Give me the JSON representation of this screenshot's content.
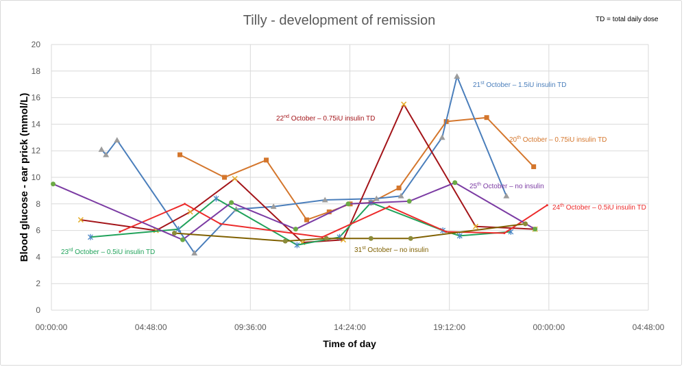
{
  "chart_data": {
    "type": "line",
    "title": "Tilly - development of remission",
    "note": "TD = total daily dose",
    "xlabel": "Time of day",
    "ylabel": "Blood glucose - ear prick (mmol/L)",
    "x_ticks": [
      "00:00:00",
      "04:48:00",
      "09:36:00",
      "14:24:00",
      "19:12:00",
      "00:00:00",
      "04:48:00"
    ],
    "y_ticks": [
      0,
      2,
      4,
      6,
      8,
      10,
      12,
      14,
      16,
      18,
      20
    ],
    "ylim": [
      0,
      20
    ],
    "grid": true,
    "legend": "inline",
    "series": [
      {
        "name": "20th October – 0.75iU insulin TD",
        "color": "#D4762C",
        "marker": "square",
        "marker_color": "#D4762C",
        "x": [
          "06:12",
          "08:21",
          "10:22",
          "12:19",
          "13:24",
          "14:25",
          "15:25",
          "16:46",
          "19:03",
          "21:00",
          "23:16"
        ],
        "y": [
          11.7,
          10.0,
          11.3,
          6.8,
          7.4,
          8.0,
          8.1,
          9.2,
          14.2,
          14.5,
          10.8
        ]
      },
      {
        "name": "21st October – 1.5iU insulin TD",
        "color": "#4A7EBB",
        "marker": "triangle",
        "marker_color": "#9C9C9C",
        "x": [
          "02:25",
          "02:38",
          "03:10",
          "06:54",
          "08:55",
          "10:43",
          "13:12",
          "15:41",
          "16:52",
          "18:51",
          "19:34",
          "21:57"
        ],
        "y": [
          12.1,
          11.7,
          12.8,
          4.3,
          7.6,
          7.8,
          8.3,
          8.4,
          8.6,
          13.0,
          17.6,
          8.6
        ]
      },
      {
        "name": "22nd October – 0.75iU insulin TD",
        "color": "#A31419",
        "marker": "x",
        "marker_color": "#E5B02F",
        "x": [
          "01:25",
          "05:03",
          "06:42",
          "08:51",
          "12:07",
          "14:05",
          "17:00",
          "20:28",
          "23:20"
        ],
        "y": [
          6.8,
          6.0,
          7.4,
          9.9,
          5.1,
          5.3,
          15.5,
          6.3,
          6.1
        ]
      },
      {
        "name": "23rd October – 0.5iU insulin TD",
        "color": "#20A25A",
        "marker": "star",
        "marker_color": "#4A86C5",
        "x": [
          "01:53",
          "06:08",
          "07:57",
          "11:51",
          "13:54",
          "15:25",
          "18:53",
          "19:42",
          "22:10"
        ],
        "y": [
          5.5,
          6.1,
          8.4,
          4.9,
          5.5,
          8.1,
          6.0,
          5.6,
          5.9
        ]
      },
      {
        "name": "24th October – 0.5iU insulin TD",
        "color": "#EC2A2A",
        "marker": "dot",
        "marker_color": "#EC2A2A",
        "x": [
          "03:18",
          "06:26",
          "08:09",
          "13:04",
          "16:18",
          "19:03",
          "21:51",
          "23:55"
        ],
        "y": [
          5.9,
          8.0,
          6.5,
          5.5,
          7.8,
          5.9,
          5.8,
          7.9
        ]
      },
      {
        "name": "25th October – no insulin",
        "color": "#7B3BA3",
        "marker": "circle",
        "marker_color": "#6BAA45",
        "x": [
          "00:05",
          "06:20",
          "08:41",
          "11:47",
          "14:19",
          "17:16",
          "19:28",
          "23:20"
        ],
        "y": [
          9.5,
          5.3,
          8.1,
          6.1,
          8.0,
          8.2,
          9.6,
          6.1
        ]
      },
      {
        "name": "31st October – no insulin",
        "color": "#7F6000",
        "marker": "circle",
        "marker_color": "#8B8B3A",
        "x": [
          "05:56",
          "11:17",
          "13:16",
          "15:25",
          "17:20",
          "22:52"
        ],
        "y": [
          5.8,
          5.2,
          5.4,
          5.4,
          5.4,
          6.5
        ]
      }
    ]
  }
}
